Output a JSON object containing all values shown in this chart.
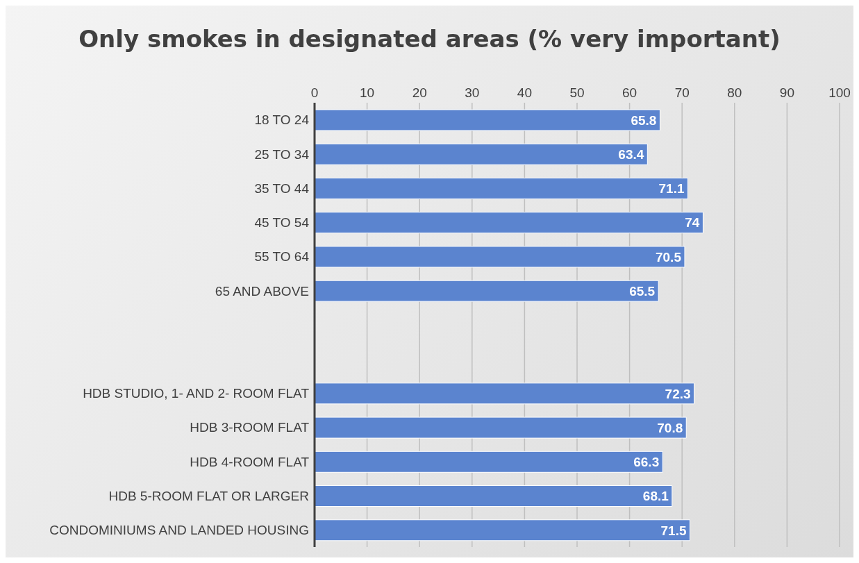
{
  "chart_data": {
    "type": "bar",
    "orientation": "horizontal",
    "title": "Only smokes in designated areas (% very important)",
    "categories": [
      "18 TO 24",
      "25 TO 34",
      "35 TO 44",
      "45 TO 54",
      "55 TO 64",
      "65 AND ABOVE",
      null,
      null,
      "HDB STUDIO, 1- AND 2- ROOM FLAT",
      "HDB 3-ROOM FLAT",
      "HDB 4-ROOM FLAT",
      "HDB 5-ROOM FLAT OR LARGER",
      "CONDOMINIUMS AND LANDED HOUSING"
    ],
    "values": [
      65.8,
      63.4,
      71.1,
      74,
      70.5,
      65.5,
      null,
      null,
      72.3,
      70.8,
      66.3,
      68.1,
      71.5
    ],
    "color": "#5b84cf",
    "xlim": [
      0,
      100
    ],
    "xticks": [
      0,
      10,
      20,
      30,
      40,
      50,
      60,
      70,
      80,
      90,
      100
    ],
    "grid": "x",
    "data_labels": true
  }
}
